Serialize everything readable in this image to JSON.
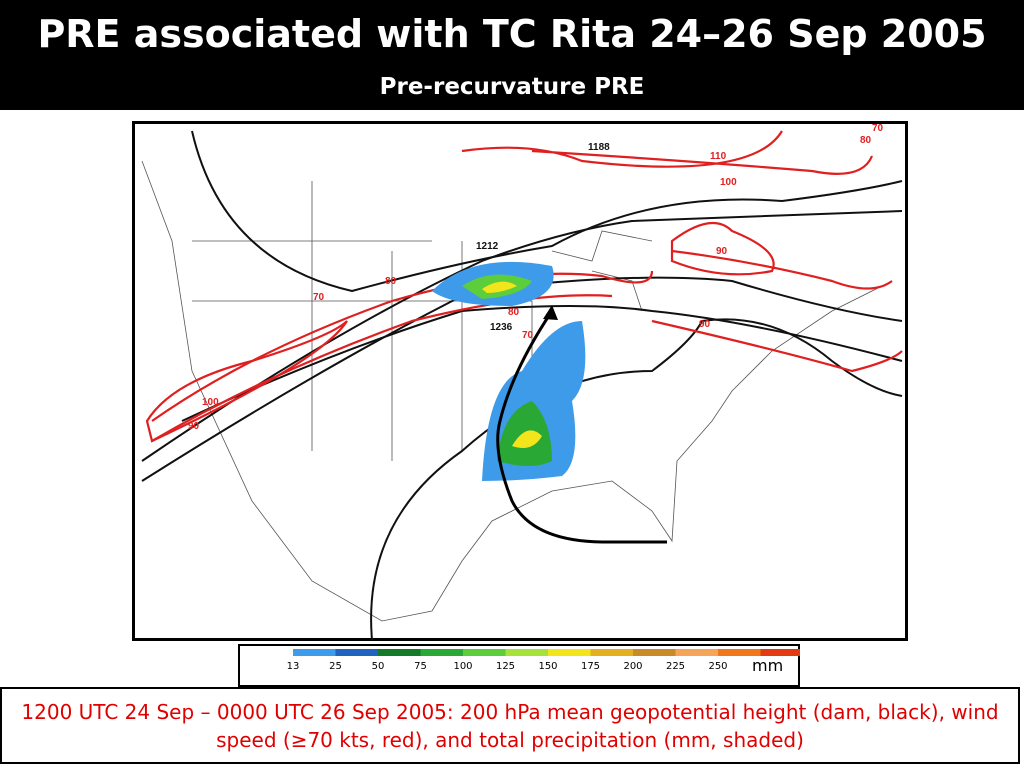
{
  "header": {
    "title": "PRE associated with TC Rita 24–26 Sep 2005",
    "subtitle": "Pre-recurvature PRE"
  },
  "map": {
    "contour_labels": [
      "1188",
      "110",
      "100",
      "70",
      "80",
      "90",
      "1212",
      "80",
      "70",
      "80",
      "1236",
      "70",
      "90",
      "100",
      "90"
    ]
  },
  "colorbar": {
    "labels": [
      "13",
      "25",
      "50",
      "75",
      "100",
      "125",
      "150",
      "175",
      "200",
      "225",
      "250"
    ],
    "unit": "mm",
    "colors": [
      "#ffffff",
      "#3d9be9",
      "#1f63c0",
      "#137a28",
      "#2aa836",
      "#5ccd3b",
      "#a6e23c",
      "#f3e51c",
      "#e3b020",
      "#c98a2a",
      "#f6a45a",
      "#f0781a",
      "#e33a12"
    ]
  },
  "caption": "1200 UTC 24 Sep – 0000 UTC 26 Sep 2005:  200 hPa mean geopotential height (dam, black), wind speed (≥70 kts, red), and total precipitation (mm, shaded)"
}
